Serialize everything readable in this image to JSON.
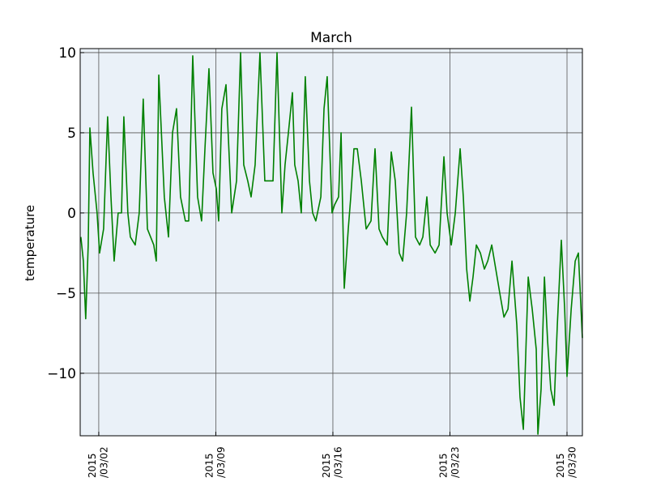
{
  "chart_data": {
    "type": "line",
    "title": "March",
    "y_label": "temperature",
    "x": [
      0.93,
      1.08,
      1.22,
      1.37,
      1.47,
      1.66,
      1.9,
      2.05,
      2.29,
      2.53,
      2.73,
      2.92,
      3.16,
      3.36,
      3.5,
      3.74,
      3.89,
      4.18,
      4.42,
      4.66,
      4.91,
      5.1,
      5.29,
      5.44,
      5.59,
      5.92,
      6.17,
      6.41,
      6.65,
      6.89,
      7.18,
      7.38,
      7.62,
      7.91,
      8.15,
      8.35,
      8.59,
      8.83,
      9.03,
      9.17,
      9.36,
      9.61,
      9.95,
      10.24,
      10.48,
      10.67,
      10.91,
      11.11,
      11.35,
      11.64,
      11.93,
      12.22,
      12.42,
      12.66,
      12.95,
      13.14,
      13.34,
      13.58,
      13.72,
      13.92,
      14.11,
      14.35,
      14.6,
      14.79,
      14.98,
      15.28,
      15.47,
      15.66,
      15.95,
      16.1,
      16.34,
      16.49,
      16.68,
      16.92,
      17.07,
      17.26,
      17.46,
      17.7,
      17.99,
      18.28,
      18.52,
      18.76,
      18.96,
      19.25,
      19.49,
      19.73,
      19.97,
      20.17,
      20.41,
      20.7,
      20.94,
      21.19,
      21.38,
      21.62,
      21.82,
      22.11,
      22.35,
      22.64,
      22.83,
      23.08,
      23.32,
      23.61,
      23.8,
      24.0,
      24.19,
      24.38,
      24.58,
      24.82,
      25.06,
      25.26,
      25.5,
      25.74,
      25.98,
      26.23,
      26.47,
      26.71,
      27.0,
      27.19,
      27.39,
      27.68,
      27.92,
      28.16,
      28.26,
      28.45,
      28.65,
      28.84,
      29.03,
      29.23,
      29.42,
      29.66,
      29.86,
      30.0,
      30.25,
      30.49,
      30.68,
      30.92
    ],
    "values": [
      -1.5,
      -3,
      -6.6,
      -2,
      5.3,
      2.5,
      0,
      -2.5,
      -1,
      6,
      1,
      -3,
      0,
      0,
      6,
      0,
      -1.5,
      -2,
      0,
      7.1,
      -1,
      -1.5,
      -2,
      -3,
      8.6,
      1,
      -1.5,
      5,
      6.5,
      1,
      -0.5,
      -0.5,
      9.8,
      1,
      -0.5,
      4,
      9,
      2.5,
      1.5,
      -0.5,
      6.5,
      8,
      0,
      2,
      10,
      3,
      2,
      1,
      3,
      10,
      2,
      2,
      2,
      10,
      0,
      3,
      5,
      7.5,
      3,
      2,
      0,
      8.5,
      2,
      0,
      -0.5,
      1,
      6.5,
      8.5,
      0,
      0.5,
      1,
      5,
      -4.7,
      -1,
      1,
      4,
      4,
      2,
      -1,
      -0.5,
      4,
      -1,
      -1.5,
      -2,
      3.8,
      2,
      -2.5,
      -3,
      0,
      6.6,
      -1.5,
      -2,
      -1.5,
      1,
      -2,
      -2.5,
      -2,
      3.5,
      0,
      -2,
      0,
      4,
      1,
      -3.5,
      -5.5,
      -4,
      -2,
      -2.5,
      -3.5,
      -3,
      -2,
      -3.5,
      -5,
      -6.5,
      -6,
      -3,
      -7,
      -11.5,
      -13.5,
      -4,
      -6,
      -8.5,
      -13.8,
      -11,
      -4,
      -8,
      -11,
      -12,
      -7,
      -1.7,
      -6,
      -10.2,
      -6,
      -3,
      -2.5,
      -7.8
    ],
    "color": "#008000",
    "xlim": [
      0.89,
      30.92
    ],
    "xticks": [
      {
        "value": 2,
        "label": "2015\n/03/02"
      },
      {
        "value": 9,
        "label": "2015\n/03/09"
      },
      {
        "value": 16,
        "label": "2015\n/03/16"
      },
      {
        "value": 23,
        "label": "2015\n/03/23"
      },
      {
        "value": 30,
        "label": "2015\n/03/30"
      }
    ],
    "ylim": [
      -13.9,
      10.25
    ],
    "yticks": [
      {
        "value": -10,
        "label": "−10"
      },
      {
        "value": -5,
        "label": "−5"
      },
      0,
      5,
      10
    ],
    "grid": true
  }
}
